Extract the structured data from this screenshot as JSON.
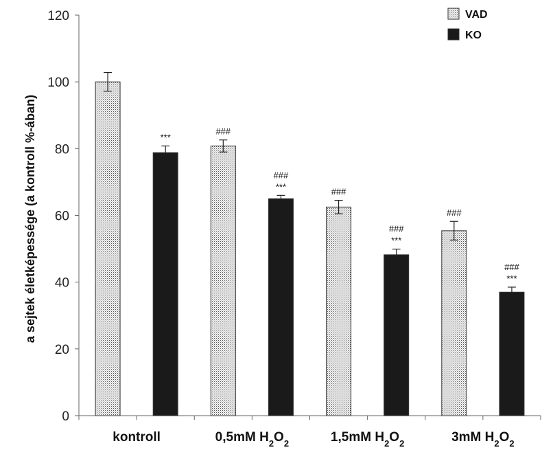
{
  "chart_data": {
    "type": "bar",
    "ylabel": "a sejtek életképessége (a kontroll %-ában)",
    "ylim": [
      0,
      120
    ],
    "yticks": [
      0,
      20,
      40,
      60,
      80,
      100,
      120
    ],
    "grid": false,
    "legend_position": "top-right",
    "categories": [
      {
        "label": "kontroll",
        "sub": ""
      },
      {
        "label": "0,5mM H",
        "sub": "2",
        "mid": "O",
        "sub2": "2"
      },
      {
        "label": "1,5mM H",
        "sub": "2",
        "mid": "O",
        "sub2": "2"
      },
      {
        "label": "3mM H",
        "sub": "2",
        "mid": "O",
        "sub2": "2"
      }
    ],
    "series": [
      {
        "name": "VAD",
        "fill": "dotted",
        "color": "#e6e6e6",
        "values": [
          100,
          80.8,
          62.5,
          55.4
        ],
        "errors": [
          2.8,
          1.8,
          2.0,
          2.8
        ],
        "annotations": [
          [],
          [
            "###"
          ],
          [
            "###"
          ],
          [
            "###"
          ]
        ]
      },
      {
        "name": "KO",
        "fill": "solid",
        "color": "#1a1a1a",
        "values": [
          78.8,
          65.0,
          48.2,
          37.0
        ],
        "errors": [
          2.0,
          1.0,
          1.7,
          1.5
        ],
        "annotations": [
          [
            "***"
          ],
          [
            "###",
            "***"
          ],
          [
            "###",
            "***"
          ],
          [
            "###",
            "***"
          ]
        ]
      }
    ]
  }
}
